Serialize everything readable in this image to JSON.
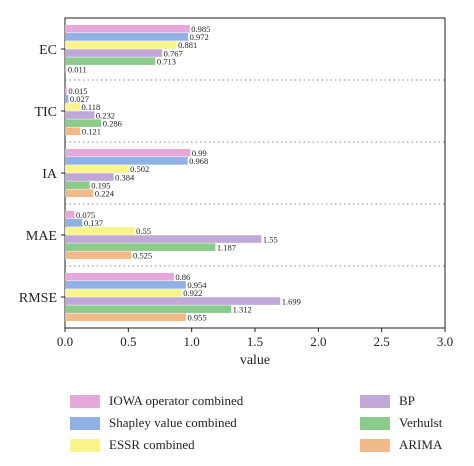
{
  "chart_data": {
    "type": "bar",
    "orientation": "horizontal",
    "categories": [
      "EC",
      "TIC",
      "IA",
      "MAE",
      "RMSE"
    ],
    "xlabel": "value",
    "ylabel": "",
    "xlim": [
      0.0,
      3.0
    ],
    "xticks": [
      "0.0",
      "0.5",
      "1.0",
      "1.5",
      "2.0",
      "2.5",
      "3.0"
    ],
    "grid": "dotted separators between categories",
    "legend_placement": "bottom",
    "series": [
      {
        "name": "IOWA operator combined",
        "color": "#e6a8d8",
        "values": [
          0.985,
          0.015,
          0.99,
          0.075,
          0.86
        ],
        "labels": [
          "0.985",
          "0.015",
          "0.99",
          "0.075",
          "0.86"
        ]
      },
      {
        "name": "Shapley value combined",
        "color": "#8fb2e6",
        "values": [
          0.972,
          0.027,
          0.968,
          0.137,
          0.954
        ],
        "labels": [
          "0.972",
          "0.027",
          "0.968",
          "0.137",
          "0.954"
        ]
      },
      {
        "name": "ESSR combined",
        "color": "#f9f58a",
        "values": [
          0.881,
          0.118,
          0.502,
          0.55,
          0.922
        ],
        "labels": [
          "0.881",
          "0.118",
          "0.502",
          "0.55",
          "0.922"
        ]
      },
      {
        "name": "BP",
        "color": "#c0a8d8",
        "values": [
          0.767,
          0.232,
          0.384,
          1.55,
          1.699
        ],
        "labels": [
          "0.767",
          "0.232",
          "0.384",
          "1.55",
          "1.699"
        ]
      },
      {
        "name": "Verhulst",
        "color": "#8ccc8a",
        "values": [
          0.713,
          0.286,
          0.195,
          1.187,
          1.312
        ],
        "labels": [
          "0.713",
          "0.286",
          "0.195",
          "1.187",
          "1.312"
        ]
      },
      {
        "name": "ARIMA",
        "color": "#f2b98a",
        "values": [
          0.011,
          0.121,
          0.224,
          0.525,
          0.955
        ],
        "labels": [
          "0.011",
          "0.121",
          "0.224",
          "0.525",
          "0.955"
        ]
      }
    ]
  }
}
